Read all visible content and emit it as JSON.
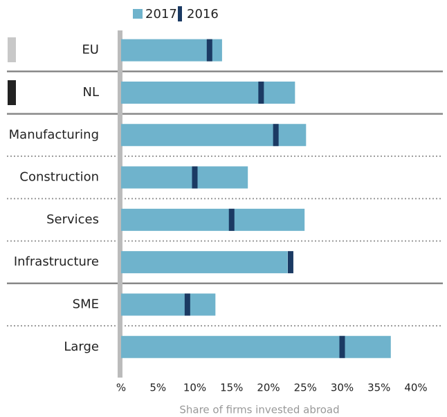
{
  "chart_data": {
    "type": "bar",
    "orientation": "horizontal",
    "categories": [
      "EU",
      "NL",
      "Manufacturing",
      "Construction",
      "Services",
      "Infrastructure",
      "SME",
      "Large"
    ],
    "series": [
      {
        "name": "2017",
        "color": "#6fb3cc",
        "values": [
          13.7,
          23.6,
          25.1,
          17.2,
          24.9,
          22.6,
          12.8,
          36.6
        ]
      },
      {
        "name": "2016",
        "color": "#1b3a63",
        "values": [
          12.0,
          19.0,
          21.0,
          10.0,
          15.0,
          23.0,
          9.0,
          30.0
        ]
      }
    ],
    "xlim": [
      0,
      40
    ],
    "xticks": [
      {
        "value": 0,
        "label": "%"
      },
      {
        "value": 5,
        "label": "5%"
      },
      {
        "value": 10,
        "label": "10%"
      },
      {
        "value": 15,
        "label": "15%"
      },
      {
        "value": 20,
        "label": "20%"
      },
      {
        "value": 25,
        "label": "25%"
      },
      {
        "value": 30,
        "label": "30%"
      },
      {
        "value": 35,
        "label": "35%"
      },
      {
        "value": 40,
        "label": "40%"
      }
    ],
    "x_label": "Share of firms invested abroad"
  }
}
